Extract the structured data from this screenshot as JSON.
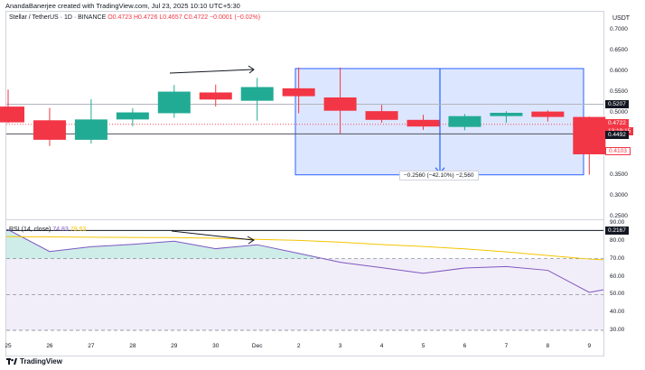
{
  "header": {
    "credit": "AnandaBanerjee created with TradingView.com, Jul 23, 2025 10:10 UTC+5:30",
    "symbol": "Stellar / TetherUS · 1D · BINANCE",
    "quote": "O0.4723  H0.4726  L0.4657  C0.4722  −0.0001 (−0.02%)"
  },
  "rsi_header": {
    "title": "RSI (14, close)",
    "value_rsi": "74.83",
    "value_ma": "79.53"
  },
  "price_axis": {
    "currency": "USDT",
    "labels": [
      {
        "text": "0.7000",
        "value": 0.7
      },
      {
        "text": "0.6500",
        "value": 0.65
      },
      {
        "text": "0.6000",
        "value": 0.6
      },
      {
        "text": "0.5500",
        "value": 0.55
      },
      {
        "text": "0.5000",
        "value": 0.5
      },
      {
        "text": "0.4000",
        "value": 0.4
      },
      {
        "text": "0.3500",
        "value": 0.35
      },
      {
        "text": "0.3000",
        "value": 0.3
      },
      {
        "text": "0.2500",
        "value": 0.25
      }
    ],
    "tags": {
      "line_upper": "0.5207",
      "current": "0.4722",
      "countdown": "13:19:15",
      "line_lower": "0.4492",
      "low": "0.4103",
      "bottom_line": "0.2167"
    }
  },
  "rsi_axis": {
    "labels": [
      {
        "text": "90.00",
        "value": 90
      },
      {
        "text": "80.00",
        "value": 80
      },
      {
        "text": "70.00",
        "value": 70
      },
      {
        "text": "60.00",
        "value": 60
      },
      {
        "text": "50.00",
        "value": 50
      },
      {
        "text": "40.00",
        "value": 40
      },
      {
        "text": "30.00",
        "value": 30
      }
    ]
  },
  "time_axis": [
    "25",
    "26",
    "27",
    "28",
    "29",
    "30",
    "Dec",
    "2",
    "3",
    "4",
    "5",
    "6",
    "7",
    "8",
    "9"
  ],
  "measure": {
    "label": "−0.2560 (−42.10%) −2,560",
    "from_price": 0.6066,
    "to_price": 0.3506
  },
  "horizontal_lines": [
    0.5207,
    0.4492,
    0.2167
  ],
  "chart_data": {
    "type": "candlestick",
    "symbol": "XLMUSDT",
    "x": [
      "25",
      "26",
      "27",
      "28",
      "29",
      "30",
      "Dec",
      "2",
      "3",
      "4",
      "5",
      "6",
      "7",
      "8",
      "9"
    ],
    "candles": [
      {
        "o": 0.515,
        "h": 0.556,
        "l": 0.475,
        "c": 0.477
      },
      {
        "o": 0.482,
        "h": 0.512,
        "l": 0.42,
        "c": 0.435
      },
      {
        "o": 0.435,
        "h": 0.533,
        "l": 0.426,
        "c": 0.484
      },
      {
        "o": 0.484,
        "h": 0.511,
        "l": 0.468,
        "c": 0.501
      },
      {
        "o": 0.499,
        "h": 0.567,
        "l": 0.488,
        "c": 0.551
      },
      {
        "o": 0.549,
        "h": 0.568,
        "l": 0.515,
        "c": 0.532
      },
      {
        "o": 0.529,
        "h": 0.584,
        "l": 0.481,
        "c": 0.562
      },
      {
        "o": 0.559,
        "h": 0.609,
        "l": 0.499,
        "c": 0.54
      },
      {
        "o": 0.537,
        "h": 0.609,
        "l": 0.45,
        "c": 0.505
      },
      {
        "o": 0.504,
        "h": 0.519,
        "l": 0.476,
        "c": 0.483
      },
      {
        "o": 0.483,
        "h": 0.495,
        "l": 0.459,
        "c": 0.467
      },
      {
        "o": 0.466,
        "h": 0.497,
        "l": 0.458,
        "c": 0.492
      },
      {
        "o": 0.492,
        "h": 0.504,
        "l": 0.476,
        "c": 0.5
      },
      {
        "o": 0.503,
        "h": 0.506,
        "l": 0.479,
        "c": 0.49
      },
      {
        "o": 0.49,
        "h": 0.491,
        "l": 0.351,
        "c": 0.4
      }
    ],
    "rsi": [
      86.2,
      74.0,
      76.7,
      78.0,
      79.8,
      75.6,
      77.8,
      73.0,
      68.0,
      65.0,
      61.8,
      64.8,
      65.6,
      63.5,
      51.2
    ],
    "rsi_last": 52.6,
    "rsi_ma": [
      82.3,
      82.2,
      82.0,
      81.9,
      81.8,
      81.4,
      80.8,
      80.2,
      79.2,
      77.9,
      76.8,
      75.5,
      73.8,
      71.8,
      69.8
    ],
    "rsi_ma_last": 69.4,
    "price_range": [
      0.2,
      0.72
    ],
    "rsi_range": [
      28,
      92
    ],
    "rsi_bands": [
      70,
      50,
      30
    ],
    "colors": {
      "up": "#22ab94",
      "down": "#f23645",
      "rsi": "#7e57c2",
      "rsi_ma": "#f5c400",
      "measure": "#2962ff"
    }
  }
}
